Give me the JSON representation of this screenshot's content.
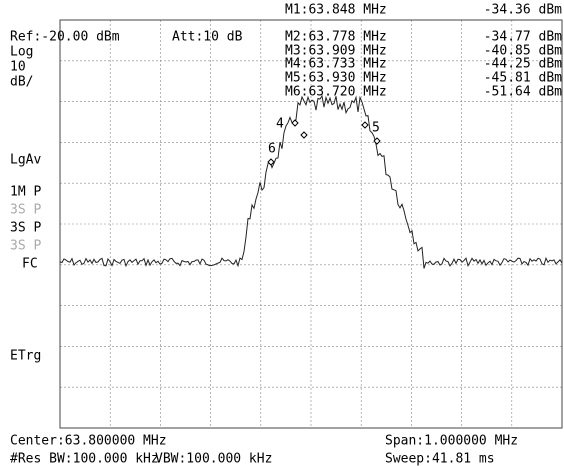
{
  "header": {
    "ref": "Ref:-20.00 dBm",
    "att": "Att:10 dB"
  },
  "markers": [
    {
      "freq": "M1:63.848 MHz",
      "level": "-34.36 dBm"
    },
    {
      "freq": "M2:63.778 MHz",
      "level": "-34.77 dBm"
    },
    {
      "freq": "M3:63.909 MHz",
      "level": "-40.85 dBm"
    },
    {
      "freq": "M4:63.733 MHz",
      "level": "-44.25 dBm"
    },
    {
      "freq": "M5:63.930 MHz",
      "level": "-45.81 dBm"
    },
    {
      "freq": "M6:63.720 MHz",
      "level": "-51.64 dBm"
    }
  ],
  "side_labels": {
    "scale": "Log",
    "per_div": "10",
    "unit": "dB/",
    "avg": "LgAv",
    "trace1": "1M P",
    "trace2": "3S P",
    "trace3": "3S P",
    "trace4": "3S P",
    "fc": "FC",
    "trigger": "ETrg"
  },
  "trace_marker_labels": [
    "4",
    "6",
    "5"
  ],
  "footer": {
    "center": "Center:63.800000 MHz",
    "span": "Span:1.000000 MHz",
    "rbw": "#Res BW:100.000 kHz",
    "vbw": "VBW:100.000 kHz",
    "sweep": "Sweep:41.81 ms"
  }
}
